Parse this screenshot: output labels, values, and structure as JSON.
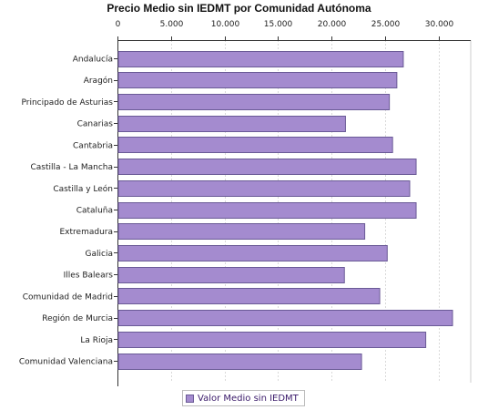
{
  "chart_data": {
    "type": "bar",
    "orientation": "horizontal",
    "title": "Precio Medio sin IEDMT por Comunidad Autónoma",
    "xlabel": "",
    "ylabel": "",
    "xlim": [
      0,
      33000
    ],
    "ticks": [
      0,
      5000,
      10000,
      15000,
      20000,
      25000,
      30000
    ],
    "tick_labels": [
      "0",
      "5.000",
      "10.000",
      "15.000",
      "20.000",
      "25.000",
      "30.000"
    ],
    "grid": "vertical",
    "legend_position": "bottom",
    "categories": [
      "Andalucía",
      "Aragón",
      "Principado de Asturias",
      "Canarias",
      "Cantabria",
      "Castilla - La Mancha",
      "Castilla y León",
      "Cataluña",
      "Extremadura",
      "Galicia",
      "Illes Balears",
      "Comunidad de Madrid",
      "Región de Murcia",
      "La Rioja",
      "Comunidad Valenciana"
    ],
    "series": [
      {
        "name": "Valor Medio sin IEDMT",
        "color": "#a48bcf",
        "values": [
          26700,
          26100,
          25400,
          21300,
          25700,
          27900,
          27300,
          27900,
          23100,
          25200,
          21200,
          24500,
          31300,
          28800,
          22800
        ]
      }
    ]
  }
}
